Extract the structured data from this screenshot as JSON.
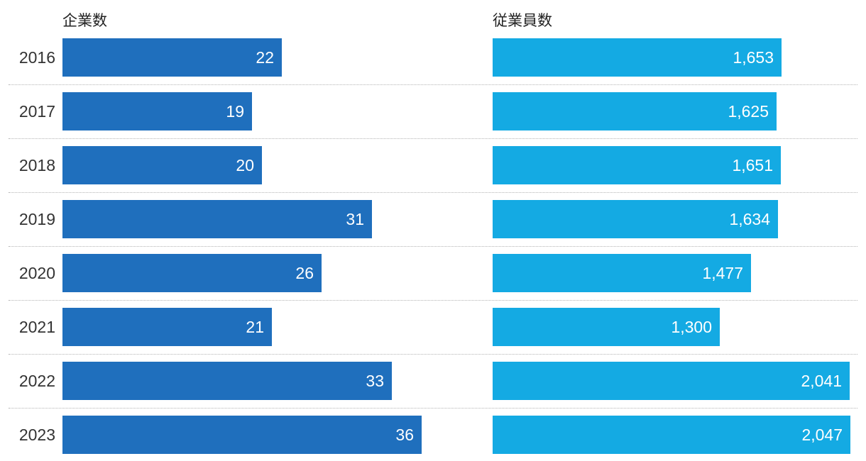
{
  "chart_data": {
    "type": "bar",
    "orientation": "horizontal",
    "categories": [
      "2016",
      "2017",
      "2018",
      "2019",
      "2020",
      "2021",
      "2022",
      "2023"
    ],
    "series": [
      {
        "name": "企業数",
        "values": [
          22,
          19,
          20,
          31,
          26,
          21,
          33,
          36
        ],
        "labels": [
          "22",
          "19",
          "20",
          "31",
          "26",
          "21",
          "33",
          "36"
        ],
        "color": "#1f6fbd",
        "xlim": [
          0,
          36
        ]
      },
      {
        "name": "従業員数",
        "values": [
          1653,
          1625,
          1651,
          1634,
          1477,
          1300,
          2041,
          2047
        ],
        "labels": [
          "1,653",
          "1,625",
          "1,651",
          "1,634",
          "1,477",
          "1,300",
          "2,041",
          "2,047"
        ],
        "color": "#14aae3",
        "xlim": [
          0,
          2047
        ]
      }
    ],
    "grid": false,
    "legend": "none"
  }
}
